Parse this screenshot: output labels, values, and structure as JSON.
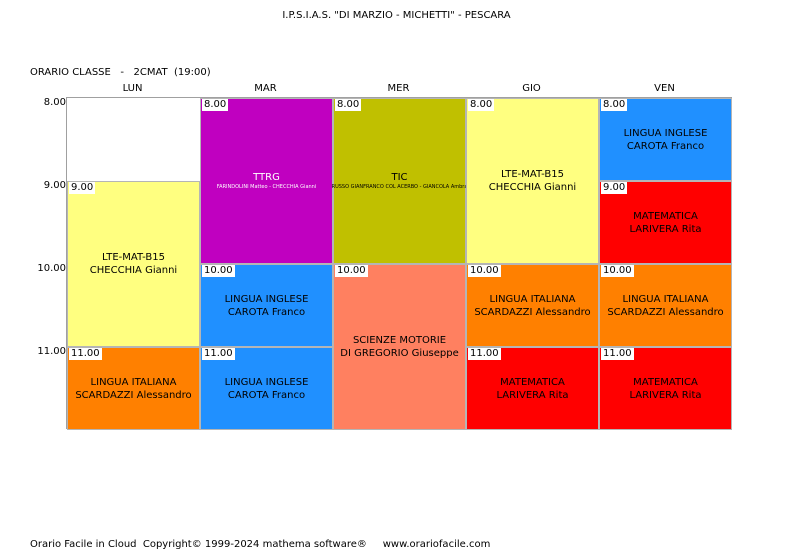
{
  "header": {
    "school": "I.P.S.I.A.S. \"DI MARZIO - MICHETTI\" - PESCARA",
    "class_label": "ORARIO CLASSE   -   2CMAT  (19:00)"
  },
  "days": [
    "LUN",
    "MAR",
    "MER",
    "GIO",
    "VEN"
  ],
  "times": [
    "8.00",
    "9.00",
    "10.00",
    "11.00"
  ],
  "colors": {
    "yellow": "#ffff80",
    "purple": "#c000c0",
    "olive": "#c0c000",
    "blue": "#2090ff",
    "red": "#ff0000",
    "orange": "#ff8000",
    "salmon": "#ff8060"
  },
  "lessons": [
    {
      "day": 0,
      "start": 1,
      "span": 2,
      "time": "9.00",
      "subject": "LTE-MAT-B15",
      "teacher": "CHECCHIA Gianni",
      "color": "#ffff80"
    },
    {
      "day": 0,
      "start": 3,
      "span": 1,
      "time": "11.00",
      "subject": "LINGUA ITALIANA",
      "teacher": "SCARDAZZI Alessandro",
      "color": "#ff8000"
    },
    {
      "day": 1,
      "start": 0,
      "span": 2,
      "time": "8.00",
      "subject": "TTRG",
      "teacher": "FARINDOLINI Matteo - CHECCHIA Gianni",
      "small": true,
      "color": "#c000c0"
    },
    {
      "day": 1,
      "start": 2,
      "span": 1,
      "time": "10.00",
      "subject": "LINGUA INGLESE",
      "teacher": "CAROTA Franco",
      "color": "#2090ff"
    },
    {
      "day": 1,
      "start": 3,
      "span": 1,
      "time": "11.00",
      "subject": "LINGUA INGLESE",
      "teacher": "CAROTA Franco",
      "color": "#2090ff"
    },
    {
      "day": 2,
      "start": 0,
      "span": 2,
      "time": "8.00",
      "subject": "TIC",
      "teacher": "RUSSO GIANFRANCO COL ACERBO - GIANCOLA Ambra",
      "small": true,
      "color": "#c0c000"
    },
    {
      "day": 2,
      "start": 2,
      "span": 2,
      "time": "10.00",
      "subject": "SCIENZE MOTORIE",
      "teacher": "DI GREGORIO Giuseppe",
      "color": "#ff8060"
    },
    {
      "day": 3,
      "start": 0,
      "span": 2,
      "time": "8.00",
      "subject": "LTE-MAT-B15",
      "teacher": "CHECCHIA Gianni",
      "color": "#ffff80"
    },
    {
      "day": 3,
      "start": 2,
      "span": 1,
      "time": "10.00",
      "subject": "LINGUA ITALIANA",
      "teacher": "SCARDAZZI Alessandro",
      "color": "#ff8000"
    },
    {
      "day": 3,
      "start": 3,
      "span": 1,
      "time": "11.00",
      "subject": "MATEMATICA",
      "teacher": "LARIVERA Rita",
      "color": "#ff0000"
    },
    {
      "day": 4,
      "start": 0,
      "span": 1,
      "time": "8.00",
      "subject": "LINGUA INGLESE",
      "teacher": "CAROTA Franco",
      "color": "#2090ff"
    },
    {
      "day": 4,
      "start": 1,
      "span": 1,
      "time": "9.00",
      "subject": "MATEMATICA",
      "teacher": "LARIVERA Rita",
      "color": "#ff0000"
    },
    {
      "day": 4,
      "start": 2,
      "span": 1,
      "time": "10.00",
      "subject": "LINGUA ITALIANA",
      "teacher": "SCARDAZZI Alessandro",
      "color": "#ff8000"
    },
    {
      "day": 4,
      "start": 3,
      "span": 1,
      "time": "11.00",
      "subject": "MATEMATICA",
      "teacher": "LARIVERA Rita",
      "color": "#ff0000"
    }
  ],
  "footer": "Orario Facile in Cloud  Copyright© 1999-2024 mathema software®     www.orariofacile.com"
}
